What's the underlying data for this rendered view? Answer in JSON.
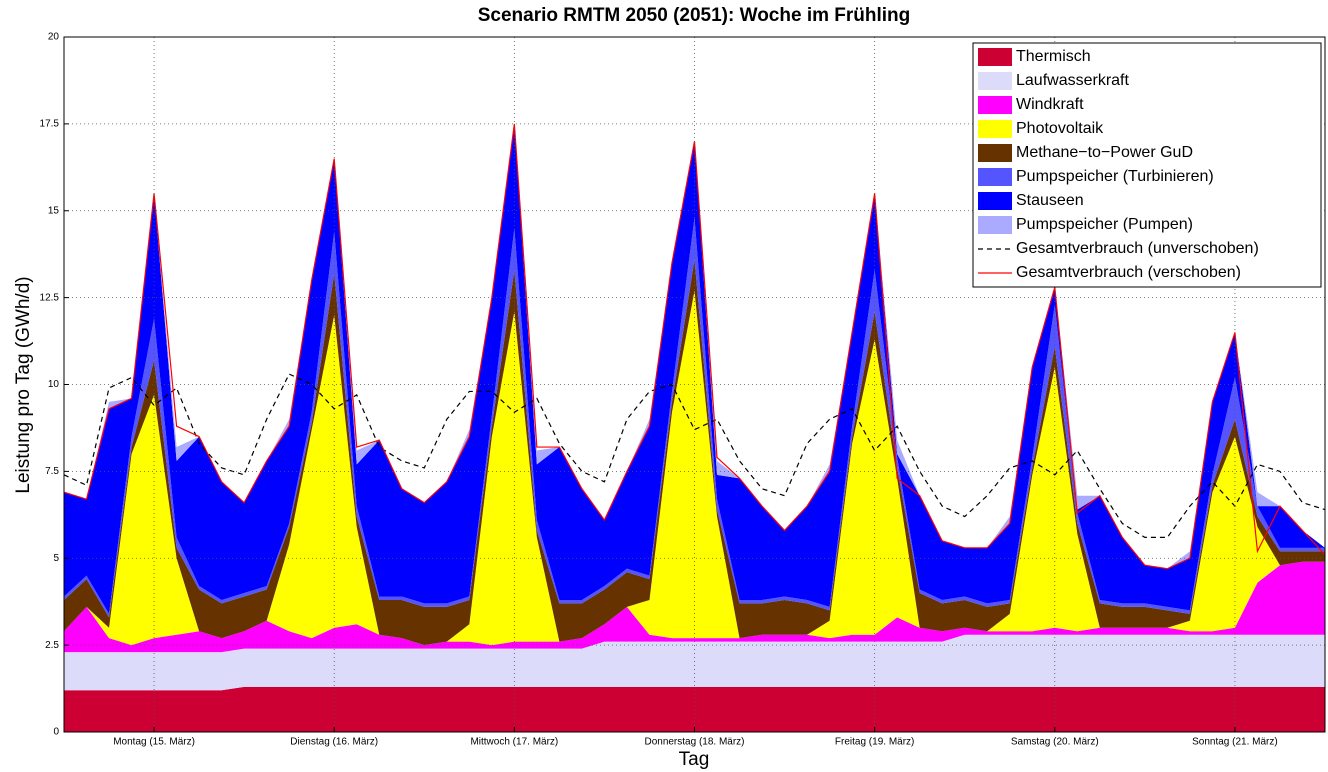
{
  "chart_data": {
    "type": "stacked_area",
    "title": "Scenario RMTM 2050 (2051): Woche im Frühling",
    "xlabel": "Tag",
    "ylabel": "Leistung pro Tag (GWh/d)",
    "xlim": [
      0,
      7
    ],
    "ylim": [
      0,
      20
    ],
    "yticks": [
      0,
      2.5,
      5,
      7.5,
      10,
      12.5,
      15,
      17.5,
      20
    ],
    "xticks": [
      {
        "value": 0.5,
        "label": "Montag (15. März)"
      },
      {
        "value": 1.5,
        "label": "Dienstag (16. März)"
      },
      {
        "value": 2.5,
        "label": "Mittwoch (17. März)"
      },
      {
        "value": 3.5,
        "label": "Donnerstag (18. März)"
      },
      {
        "value": 4.5,
        "label": "Freitag (19. März)"
      },
      {
        "value": 5.5,
        "label": "Samstag (20. März)"
      },
      {
        "value": 6.5,
        "label": "Sonntag (21. März)"
      }
    ],
    "grid": true,
    "legend": "upper right",
    "x": [
      0,
      0.125,
      0.25,
      0.375,
      0.5,
      0.625,
      0.75,
      0.875,
      1,
      1.125,
      1.25,
      1.375,
      1.5,
      1.625,
      1.75,
      1.875,
      2,
      2.125,
      2.25,
      2.375,
      2.5,
      2.625,
      2.75,
      2.875,
      3,
      3.125,
      3.25,
      3.375,
      3.5,
      3.625,
      3.75,
      3.875,
      4,
      4.125,
      4.25,
      4.375,
      4.5,
      4.625,
      4.75,
      4.875,
      5,
      5.125,
      5.25,
      5.375,
      5.5,
      5.625,
      5.75,
      5.875,
      6,
      6.125,
      6.25,
      6.375,
      6.5,
      6.625,
      6.75,
      6.875,
      7
    ],
    "series": [
      {
        "name": "Thermisch",
        "color": "#cc0033",
        "values": [
          1.2,
          1.2,
          1.2,
          1.2,
          1.2,
          1.2,
          1.2,
          1.2,
          1.3,
          1.3,
          1.3,
          1.3,
          1.3,
          1.3,
          1.3,
          1.3,
          1.3,
          1.3,
          1.3,
          1.3,
          1.3,
          1.3,
          1.3,
          1.3,
          1.3,
          1.3,
          1.3,
          1.3,
          1.3,
          1.3,
          1.3,
          1.3,
          1.3,
          1.3,
          1.3,
          1.3,
          1.3,
          1.3,
          1.3,
          1.3,
          1.3,
          1.3,
          1.3,
          1.3,
          1.3,
          1.3,
          1.3,
          1.3,
          1.3,
          1.3,
          1.3,
          1.3,
          1.3,
          1.3,
          1.3,
          1.3,
          1.3
        ]
      },
      {
        "name": "Laufwasserkraft",
        "color": "#dcdcfa",
        "values": [
          1.1,
          1.1,
          1.1,
          1.1,
          1.1,
          1.1,
          1.1,
          1.1,
          1.1,
          1.1,
          1.1,
          1.1,
          1.1,
          1.1,
          1.1,
          1.1,
          1.1,
          1.1,
          1.1,
          1.1,
          1.1,
          1.1,
          1.1,
          1.1,
          1.3,
          1.3,
          1.3,
          1.3,
          1.3,
          1.3,
          1.3,
          1.3,
          1.3,
          1.3,
          1.3,
          1.3,
          1.3,
          1.3,
          1.3,
          1.3,
          1.5,
          1.5,
          1.5,
          1.5,
          1.5,
          1.5,
          1.5,
          1.5,
          1.5,
          1.5,
          1.5,
          1.5,
          1.5,
          1.5,
          1.5,
          1.5,
          1.5
        ]
      },
      {
        "name": "Windkraft",
        "color": "#ff00ff",
        "values": [
          0.6,
          1.3,
          0.4,
          0.2,
          0.4,
          0.5,
          0.6,
          0.4,
          0.5,
          0.8,
          0.5,
          0.3,
          0.6,
          0.7,
          0.4,
          0.3,
          0.1,
          0.2,
          0.2,
          0.1,
          0.2,
          0.2,
          0.2,
          0.3,
          0.5,
          1.0,
          0.2,
          0.1,
          0.1,
          0.1,
          0.1,
          0.2,
          0.2,
          0.2,
          0.1,
          0.2,
          0.2,
          0.7,
          0.4,
          0.3,
          0.2,
          0.1,
          0.1,
          0.1,
          0.2,
          0.1,
          0.2,
          0.2,
          0.2,
          0.2,
          0.1,
          0.1,
          0.2,
          1.5,
          2.0,
          2.1,
          2.1
        ]
      },
      {
        "name": "Photovoltaik",
        "color": "#ffff00",
        "values": [
          0,
          0,
          0.3,
          5.5,
          7,
          2.2,
          0,
          0,
          0,
          0,
          2.5,
          6,
          9,
          2.8,
          0,
          0,
          0,
          0,
          0.5,
          6,
          9.5,
          3,
          0,
          0,
          0,
          0,
          1,
          6.5,
          10,
          3.5,
          0,
          0,
          0,
          0,
          0.5,
          5.5,
          8.5,
          4,
          0,
          0,
          0,
          0,
          0.5,
          4.5,
          7.5,
          2.8,
          0,
          0,
          0,
          0,
          0.3,
          4,
          5.5,
          1.6,
          0,
          0,
          0
        ]
      },
      {
        "name": "Methane−to−Power GuD",
        "color": "#663300",
        "values": [
          0.9,
          0.8,
          0.3,
          0.2,
          1.0,
          0.3,
          1.2,
          1.0,
          1.0,
          0.9,
          0.5,
          0.2,
          1.2,
          0.3,
          1.0,
          1.1,
          1.1,
          1.0,
          0.7,
          0.3,
          1.2,
          0.2,
          1.1,
          1.0,
          1.0,
          1.0,
          0.6,
          0.3,
          0.9,
          0.2,
          1.0,
          0.9,
          1.0,
          0.9,
          0.3,
          0.2,
          0.8,
          0.3,
          1.0,
          0.8,
          0.8,
          0.7,
          0.3,
          0.2,
          0.6,
          0.3,
          0.7,
          0.6,
          0.6,
          0.5,
          0.2,
          0.2,
          0.5,
          0.3,
          0.4,
          0.3,
          0.3
        ]
      },
      {
        "name": "Pumpspeicher (Turbinieren)",
        "color": "#5555ff",
        "values": [
          0.1,
          0.1,
          0.1,
          0.3,
          1.2,
          0.3,
          0.1,
          0.1,
          0.1,
          0.1,
          0.1,
          0.3,
          1.2,
          0.3,
          0.1,
          0.1,
          0.1,
          0.1,
          0.1,
          0.3,
          1.2,
          0.3,
          0.1,
          0.1,
          0.1,
          0.1,
          0.1,
          0.3,
          1.2,
          0.3,
          0.1,
          0.1,
          0.1,
          0.1,
          0.1,
          0.3,
          1.2,
          0.3,
          0.1,
          0.1,
          0.1,
          0.1,
          0.1,
          0.3,
          1.2,
          0.3,
          0.1,
          0.1,
          0.1,
          0.1,
          0.1,
          0.3,
          1.2,
          0.3,
          0.1,
          0.1,
          0.1
        ]
      },
      {
        "name": "Stauseen",
        "color": "#0000ff",
        "values": [
          3.0,
          2.2,
          5.9,
          1.1,
          3.6,
          2.2,
          4.3,
          3.4,
          2.6,
          3.6,
          2.8,
          3.8,
          2.1,
          1.2,
          4.5,
          3.1,
          2.9,
          3.5,
          4.6,
          3.4,
          3.0,
          1.6,
          4.4,
          3.2,
          1.9,
          2.8,
          4.3,
          3.7,
          2.2,
          0.7,
          3.5,
          2.7,
          1.9,
          2.7,
          3.9,
          2.7,
          2.2,
          0.1,
          2.7,
          1.7,
          1.4,
          1.6,
          2.2,
          2.6,
          0.5,
          0.1,
          3.0,
          1.9,
          1.1,
          1.1,
          1.5,
          2.1,
          1.3,
          0,
          1.2,
          0.5,
          0
        ]
      },
      {
        "name": "Pumpspeicher (Pumpen)",
        "color": "#aaaaff",
        "values": [
          0,
          0,
          0.2,
          0,
          0,
          0.4,
          0,
          0,
          0,
          0,
          0.2,
          0,
          0,
          0.4,
          0,
          0,
          0,
          0,
          0.2,
          0,
          0,
          0.4,
          0,
          0,
          0,
          0,
          0.2,
          0,
          0,
          0.4,
          0,
          0,
          0,
          0,
          0.2,
          0,
          0,
          0.4,
          0,
          0,
          0,
          0,
          0.2,
          0,
          0,
          0.4,
          0,
          0,
          0,
          0,
          0.2,
          0,
          0,
          0.4,
          0,
          0,
          0
        ]
      }
    ],
    "lines": [
      {
        "name": "Gesamtverbrauch (unverschoben)",
        "color": "#000000",
        "dash": true,
        "values": [
          7.4,
          7.1,
          9.9,
          10.2,
          9.4,
          9.9,
          8.3,
          7.6,
          7.4,
          9.0,
          10.3,
          10.0,
          9.3,
          9.7,
          8.2,
          7.8,
          7.6,
          9.0,
          9.8,
          9.8,
          9.2,
          9.6,
          8.3,
          7.5,
          7.2,
          9.0,
          9.8,
          10.0,
          8.7,
          9.0,
          7.8,
          7.0,
          6.8,
          8.3,
          9.0,
          9.3,
          8.1,
          8.8,
          7.5,
          6.5,
          6.2,
          6.8,
          7.6,
          7.8,
          7.4,
          8.1,
          7.0,
          6.0,
          5.6,
          5.6,
          6.5,
          7.2,
          6.5,
          7.7,
          7.5,
          6.6,
          6.4
        ]
      },
      {
        "name": "Gesamtverbrauch (verschoben)",
        "color": "#ff0000",
        "dash": false,
        "values": [
          6.9,
          6.7,
          9.3,
          9.6,
          15.5,
          8.8,
          8.5,
          7.2,
          6.6,
          7.8,
          8.8,
          13,
          16.5,
          8.2,
          8.4,
          7.0,
          6.6,
          7.2,
          8.5,
          12.5,
          17.5,
          8.2,
          8.2,
          7.0,
          6.1,
          7.5,
          8.8,
          13.5,
          17,
          7.9,
          7.3,
          6.5,
          5.8,
          6.5,
          7.5,
          11.5,
          15.5,
          7.3,
          6.8,
          5.5,
          5.3,
          5.3,
          6.0,
          10.5,
          12.8,
          6.3,
          6.8,
          5.6,
          4.8,
          4.7,
          5.0,
          9.5,
          11.5,
          5.2,
          6.5,
          5.8,
          5.1
        ]
      }
    ]
  }
}
